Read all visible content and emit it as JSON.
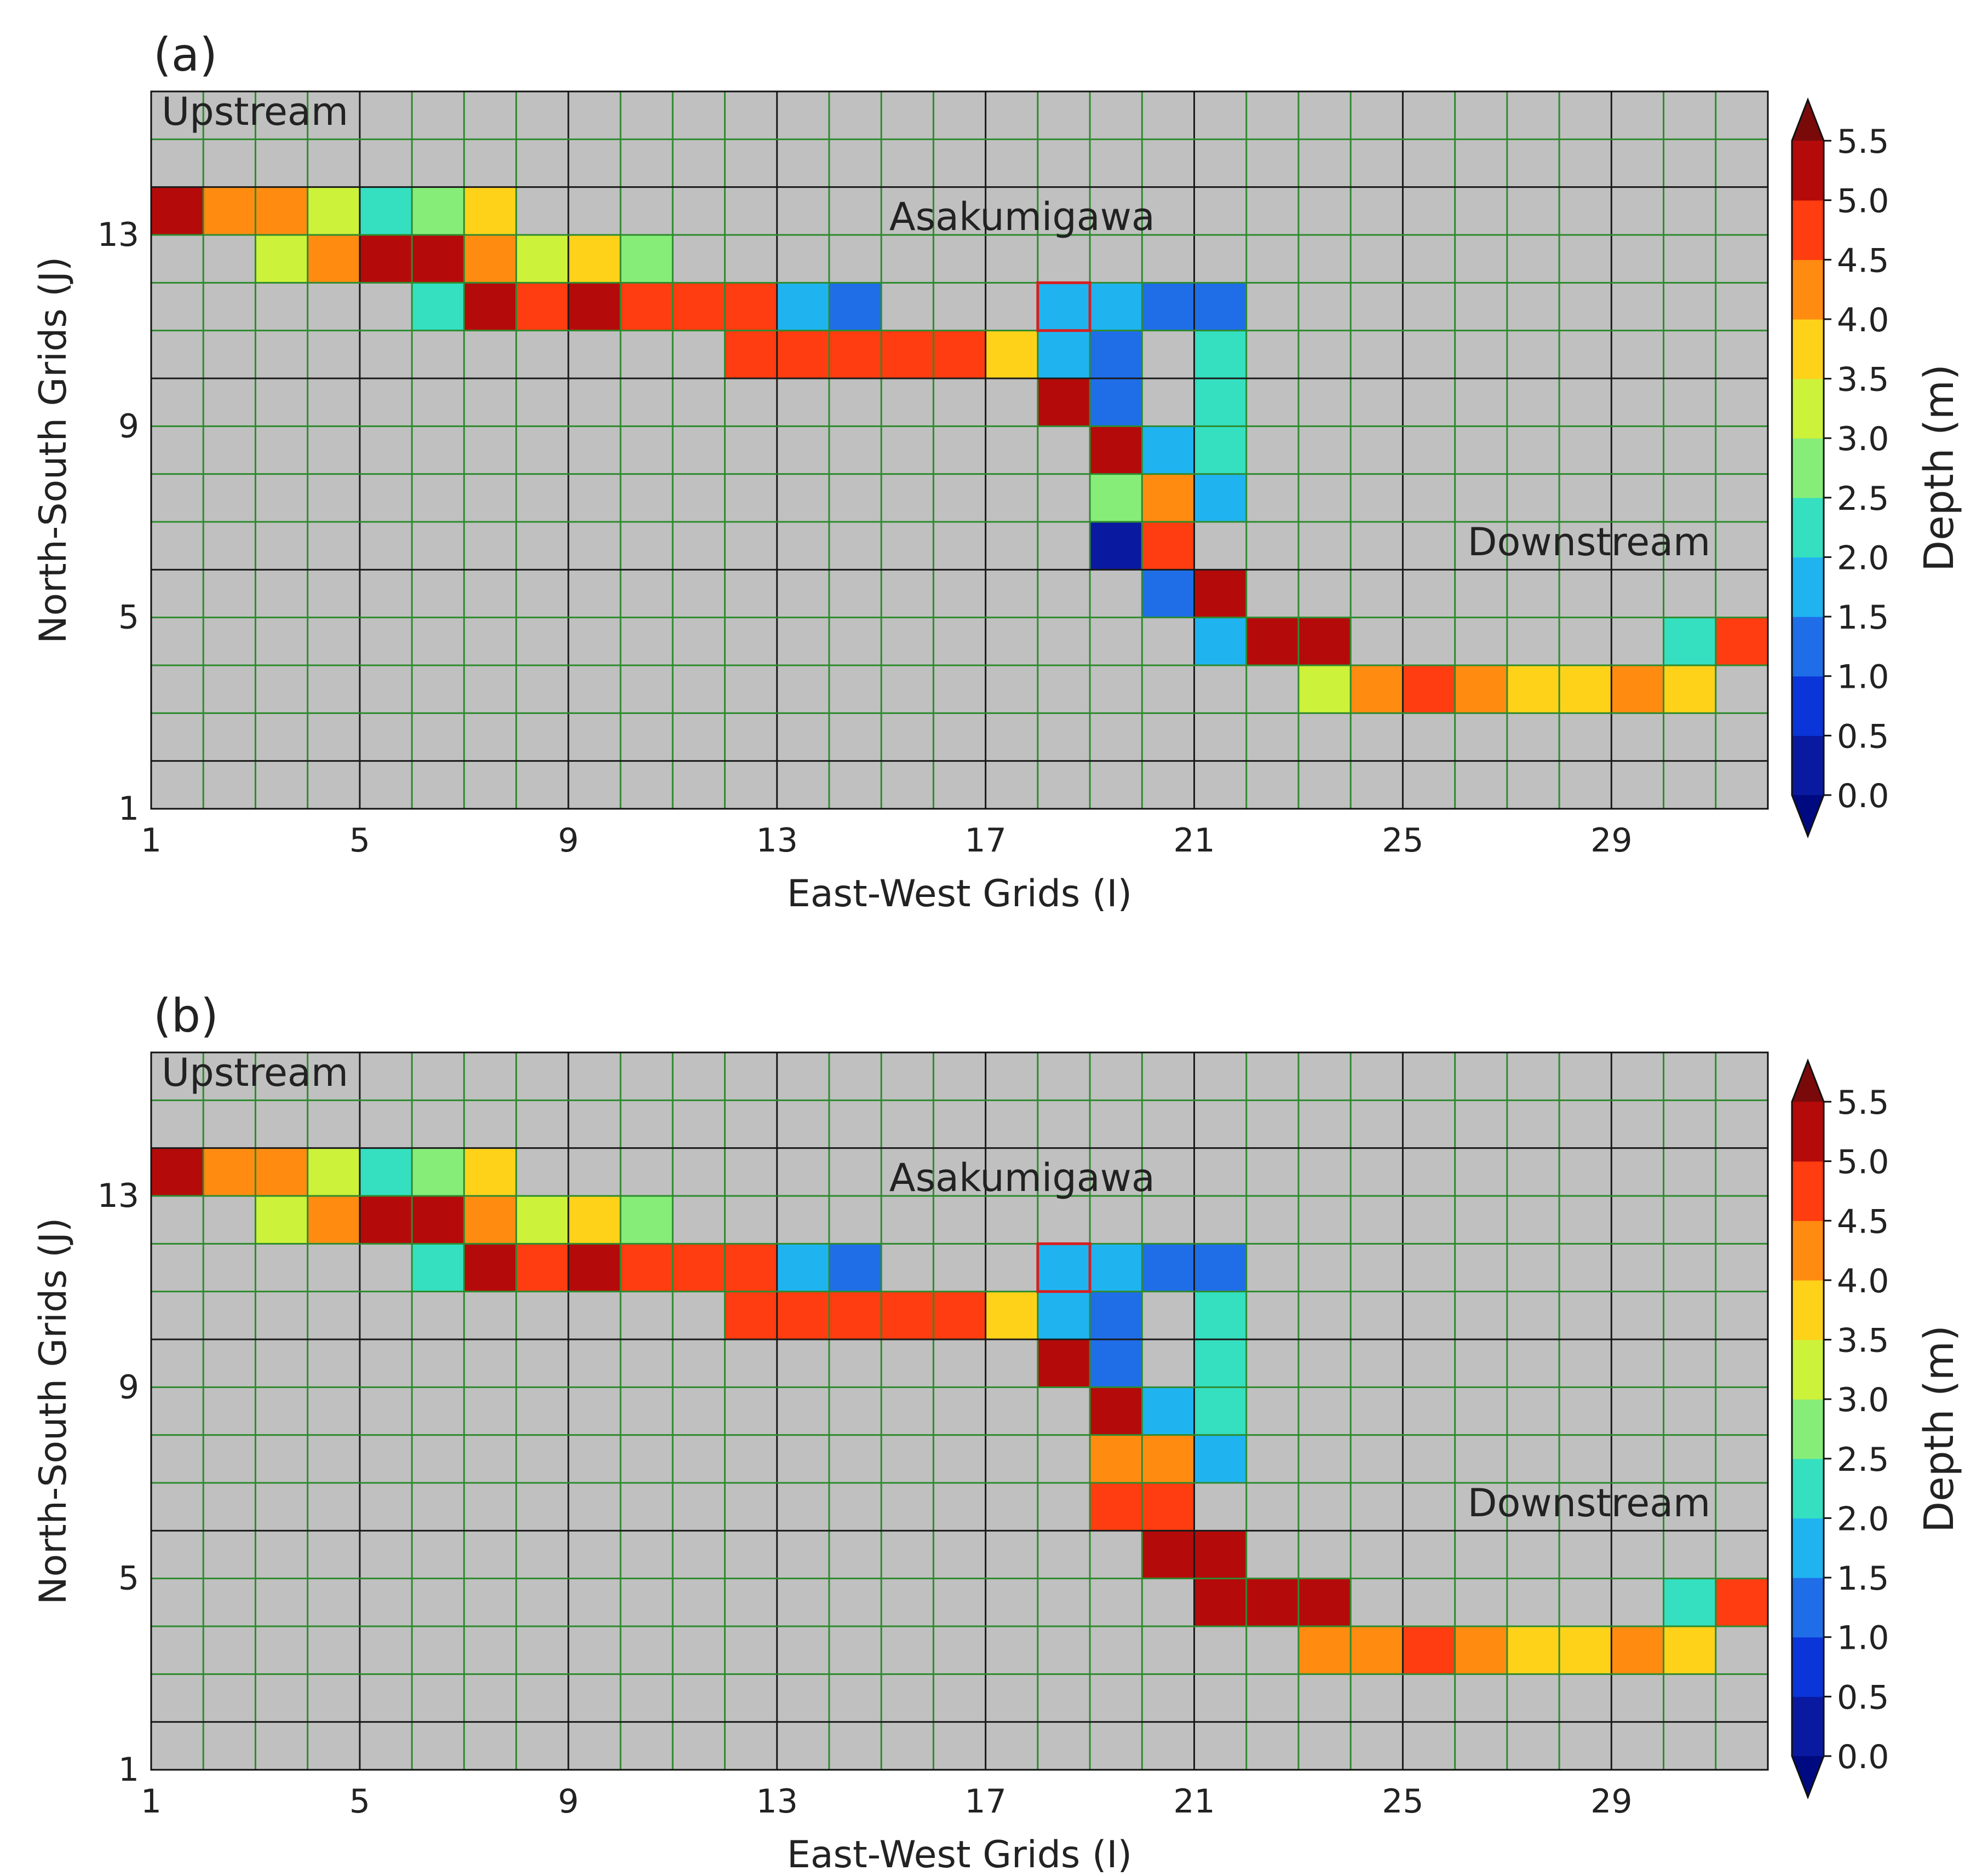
{
  "chart_data": [
    {
      "type": "heatmap",
      "panel_label": "(a)",
      "xlabel": "East-West Grids (I)",
      "ylabel": "North-South Grids (J)",
      "xticks": [
        1,
        5,
        9,
        13,
        17,
        21,
        25,
        29
      ],
      "yticks": [
        1,
        5,
        9,
        13
      ],
      "xlim": [
        1,
        31
      ],
      "ylim": [
        1,
        15
      ],
      "grid": true,
      "background": "#c0c0c0",
      "annotations": [
        {
          "text": "Upstream",
          "i": 1.2,
          "j": 14.6,
          "anchor": "start"
        },
        {
          "text": "Asakumigawa",
          "i": 17.7,
          "j": 12.4,
          "anchor": "middle"
        },
        {
          "text": "Downstream",
          "i": 30.9,
          "j": 5.6,
          "anchor": "end"
        }
      ],
      "marker_cell": {
        "i": 18,
        "j": 11
      },
      "colorbar": {
        "label": "Depth (m)",
        "ticks": [
          "5.5",
          "5.0",
          "4.5",
          "4.0",
          "3.5",
          "3.0",
          "2.5",
          "2.0",
          "1.5",
          "1.0",
          "0.5",
          "0.0"
        ],
        "min": 0,
        "max": 5.5,
        "extend": "both"
      },
      "cells": [
        [
          1,
          13,
          5.3
        ],
        [
          2,
          13,
          4.4
        ],
        [
          3,
          13,
          4.4
        ],
        [
          4,
          13,
          3.3
        ],
        [
          5,
          13,
          2.2
        ],
        [
          6,
          13,
          2.8
        ],
        [
          7,
          13,
          3.8
        ],
        [
          3,
          12,
          3.3
        ],
        [
          4,
          12,
          4.4
        ],
        [
          5,
          12,
          5.3
        ],
        [
          6,
          12,
          5.3
        ],
        [
          7,
          12,
          4.4
        ],
        [
          8,
          12,
          3.0
        ],
        [
          9,
          12,
          3.7
        ],
        [
          10,
          12,
          2.8
        ],
        [
          6,
          11,
          2.2
        ],
        [
          7,
          11,
          5.3
        ],
        [
          8,
          11,
          4.9
        ],
        [
          9,
          11,
          5.4
        ],
        [
          10,
          11,
          4.8
        ],
        [
          11,
          11,
          4.8
        ],
        [
          12,
          11,
          4.8
        ],
        [
          13,
          11,
          1.8
        ],
        [
          14,
          11,
          1.3
        ],
        [
          12,
          10,
          4.8
        ],
        [
          13,
          10,
          4.8
        ],
        [
          14,
          10,
          4.8
        ],
        [
          15,
          10,
          4.8
        ],
        [
          16,
          10,
          4.8
        ],
        [
          17,
          10,
          3.8
        ],
        [
          18,
          11,
          1.8
        ],
        [
          19,
          11,
          1.8
        ],
        [
          20,
          11,
          1.3
        ],
        [
          21,
          11,
          1.3
        ],
        [
          18,
          10,
          1.8
        ],
        [
          19,
          10,
          1.1
        ],
        [
          21,
          10,
          2.3
        ],
        [
          18,
          9,
          5.3
        ],
        [
          19,
          9,
          1.1
        ],
        [
          21,
          9,
          2.3
        ],
        [
          19,
          8,
          5.4
        ],
        [
          20,
          8,
          1.8
        ],
        [
          21,
          8,
          2.3
        ],
        [
          19,
          7,
          2.8
        ],
        [
          20,
          7,
          4.4
        ],
        [
          21,
          7,
          1.8
        ],
        [
          19,
          6,
          0.4
        ],
        [
          20,
          6,
          4.8
        ],
        [
          20,
          5,
          1.3
        ],
        [
          21,
          5,
          5.3
        ],
        [
          21,
          4,
          1.8
        ],
        [
          22,
          4,
          5.3
        ],
        [
          23,
          4,
          5.4
        ],
        [
          30,
          4,
          2.3
        ],
        [
          31,
          4,
          4.8
        ],
        [
          23,
          3,
          3.3
        ],
        [
          24,
          3,
          4.4
        ],
        [
          25,
          3,
          4.8
        ],
        [
          26,
          3,
          4.4
        ],
        [
          27,
          3,
          3.8
        ],
        [
          28,
          3,
          3.8
        ],
        [
          29,
          3,
          4.4
        ],
        [
          30,
          3,
          3.8
        ]
      ]
    },
    {
      "type": "heatmap",
      "panel_label": "(b)",
      "xlabel": "East-West Grids (I)",
      "ylabel": "North-South Grids (J)",
      "xticks": [
        1,
        5,
        9,
        13,
        17,
        21,
        25,
        29
      ],
      "yticks": [
        1,
        5,
        9,
        13
      ],
      "xlim": [
        1,
        31
      ],
      "ylim": [
        1,
        15
      ],
      "grid": true,
      "background": "#c0c0c0",
      "annotations": [
        {
          "text": "Upstream",
          "i": 1.2,
          "j": 14.6,
          "anchor": "start"
        },
        {
          "text": "Asakumigawa",
          "i": 17.7,
          "j": 12.4,
          "anchor": "middle"
        },
        {
          "text": "Downstream",
          "i": 30.9,
          "j": 5.6,
          "anchor": "end"
        }
      ],
      "marker_cell": {
        "i": 18,
        "j": 11
      },
      "colorbar": {
        "label": "Depth (m)",
        "ticks": [
          "5.5",
          "5.0",
          "4.5",
          "4.0",
          "3.5",
          "3.0",
          "2.5",
          "2.0",
          "1.5",
          "1.0",
          "0.5",
          "0.0"
        ],
        "min": 0,
        "max": 5.5,
        "extend": "both"
      },
      "cells": [
        [
          1,
          13,
          5.3
        ],
        [
          2,
          13,
          4.4
        ],
        [
          3,
          13,
          4.4
        ],
        [
          4,
          13,
          3.3
        ],
        [
          5,
          13,
          2.2
        ],
        [
          6,
          13,
          2.8
        ],
        [
          7,
          13,
          3.8
        ],
        [
          3,
          12,
          3.3
        ],
        [
          4,
          12,
          4.4
        ],
        [
          5,
          12,
          5.3
        ],
        [
          6,
          12,
          5.3
        ],
        [
          7,
          12,
          4.4
        ],
        [
          8,
          12,
          3.0
        ],
        [
          9,
          12,
          3.7
        ],
        [
          10,
          12,
          2.8
        ],
        [
          6,
          11,
          2.2
        ],
        [
          7,
          11,
          5.3
        ],
        [
          8,
          11,
          4.9
        ],
        [
          9,
          11,
          5.4
        ],
        [
          10,
          11,
          4.8
        ],
        [
          11,
          11,
          4.8
        ],
        [
          12,
          11,
          4.8
        ],
        [
          13,
          11,
          1.8
        ],
        [
          14,
          11,
          1.3
        ],
        [
          12,
          10,
          4.8
        ],
        [
          13,
          10,
          4.8
        ],
        [
          14,
          10,
          4.8
        ],
        [
          15,
          10,
          4.8
        ],
        [
          16,
          10,
          4.8
        ],
        [
          17,
          10,
          3.8
        ],
        [
          18,
          11,
          1.8
        ],
        [
          19,
          11,
          1.8
        ],
        [
          20,
          11,
          1.3
        ],
        [
          21,
          11,
          1.3
        ],
        [
          18,
          10,
          1.8
        ],
        [
          19,
          10,
          1.1
        ],
        [
          21,
          10,
          2.3
        ],
        [
          18,
          9,
          5.3
        ],
        [
          19,
          9,
          1.1
        ],
        [
          21,
          9,
          2.3
        ],
        [
          19,
          8,
          5.4
        ],
        [
          20,
          8,
          1.8
        ],
        [
          21,
          8,
          2.3
        ],
        [
          19,
          7,
          4.4
        ],
        [
          20,
          7,
          4.4
        ],
        [
          21,
          7,
          1.8
        ],
        [
          19,
          6,
          4.8
        ],
        [
          20,
          6,
          4.8
        ],
        [
          20,
          5,
          5.3
        ],
        [
          21,
          5,
          5.3
        ],
        [
          21,
          4,
          5.3
        ],
        [
          22,
          4,
          5.3
        ],
        [
          23,
          4,
          5.4
        ],
        [
          30,
          4,
          2.3
        ],
        [
          31,
          4,
          4.8
        ],
        [
          23,
          3,
          4.4
        ],
        [
          24,
          3,
          4.4
        ],
        [
          25,
          3,
          4.8
        ],
        [
          26,
          3,
          4.4
        ],
        [
          27,
          3,
          3.8
        ],
        [
          28,
          3,
          3.8
        ],
        [
          29,
          3,
          4.4
        ],
        [
          30,
          3,
          3.8
        ]
      ]
    }
  ]
}
